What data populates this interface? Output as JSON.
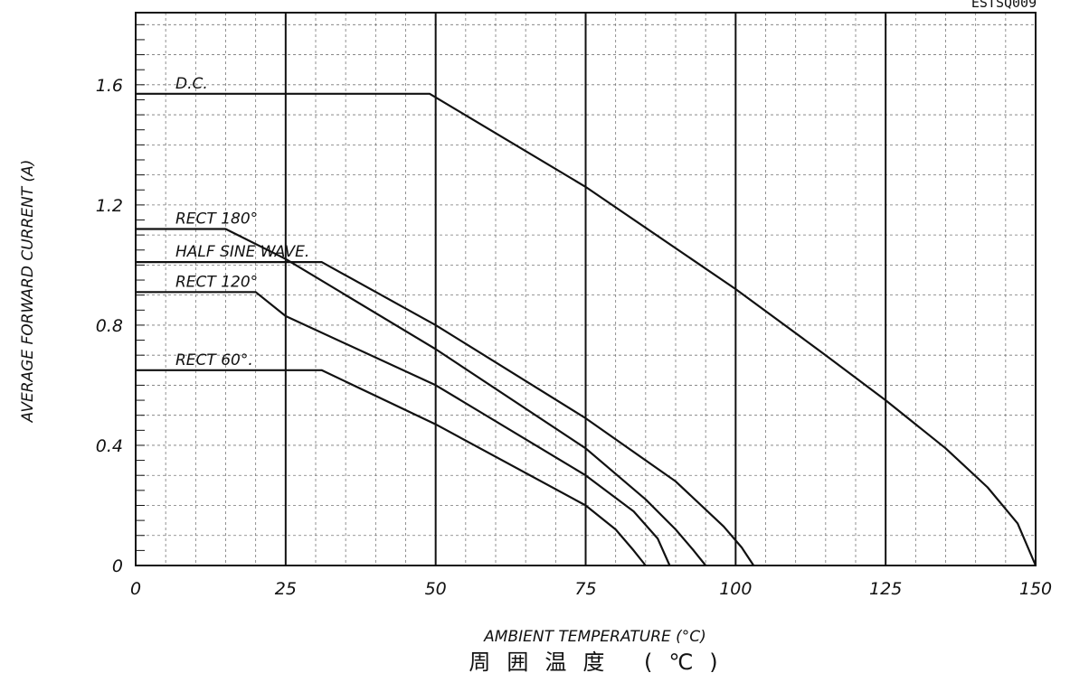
{
  "chart_data": {
    "type": "line",
    "corner_code": "ESTSQ009",
    "xlabel": "AMBIENT TEMPERATURE (°C)",
    "xlabel_jp": "周囲温度 (℃)",
    "ylabel": "AVERAGE FORWARD CURRENT (A)",
    "xlim": [
      0,
      150
    ],
    "ylim": [
      0,
      1.84
    ],
    "x_ticks": [
      0,
      25,
      50,
      75,
      100,
      125,
      150
    ],
    "x_tick_labels": [
      "0",
      "25",
      "50",
      "75",
      "100",
      "125",
      "150"
    ],
    "y_ticks": [
      0,
      0.4,
      0.8,
      1.2,
      1.6
    ],
    "y_tick_labels": [
      "0",
      "0.4",
      "0.8",
      "1.2",
      "1.6"
    ],
    "grid": true,
    "series": [
      {
        "name": "D.C.",
        "points": [
          [
            0,
            1.57
          ],
          [
            49,
            1.57
          ],
          [
            75,
            1.26
          ],
          [
            100,
            0.92
          ],
          [
            115,
            0.7
          ],
          [
            125,
            0.55
          ],
          [
            135,
            0.39
          ],
          [
            142,
            0.26
          ],
          [
            147,
            0.14
          ],
          [
            150,
            0
          ]
        ]
      },
      {
        "name": "RECT 180°",
        "points": [
          [
            0,
            1.12
          ],
          [
            15,
            1.12
          ],
          [
            25,
            1.02
          ],
          [
            50,
            0.72
          ],
          [
            75,
            0.39
          ],
          [
            85,
            0.22
          ],
          [
            90,
            0.12
          ],
          [
            93,
            0.05
          ],
          [
            95,
            0
          ]
        ]
      },
      {
        "name": "HALF SINE WAVE.",
        "points": [
          [
            0,
            1.01
          ],
          [
            31,
            1.01
          ],
          [
            50,
            0.8
          ],
          [
            75,
            0.49
          ],
          [
            90,
            0.28
          ],
          [
            98,
            0.13
          ],
          [
            101,
            0.06
          ],
          [
            103,
            0
          ]
        ]
      },
      {
        "name": "RECT 120°",
        "points": [
          [
            0,
            0.91
          ],
          [
            20,
            0.91
          ],
          [
            25,
            0.83
          ],
          [
            50,
            0.6
          ],
          [
            75,
            0.3
          ],
          [
            83,
            0.18
          ],
          [
            87,
            0.09
          ],
          [
            89,
            0
          ]
        ]
      },
      {
        "name": "RECT 60°.",
        "points": [
          [
            0,
            0.65
          ],
          [
            31,
            0.65
          ],
          [
            50,
            0.47
          ],
          [
            75,
            0.2
          ],
          [
            80,
            0.12
          ],
          [
            83,
            0.05
          ],
          [
            85,
            0
          ]
        ]
      }
    ]
  }
}
